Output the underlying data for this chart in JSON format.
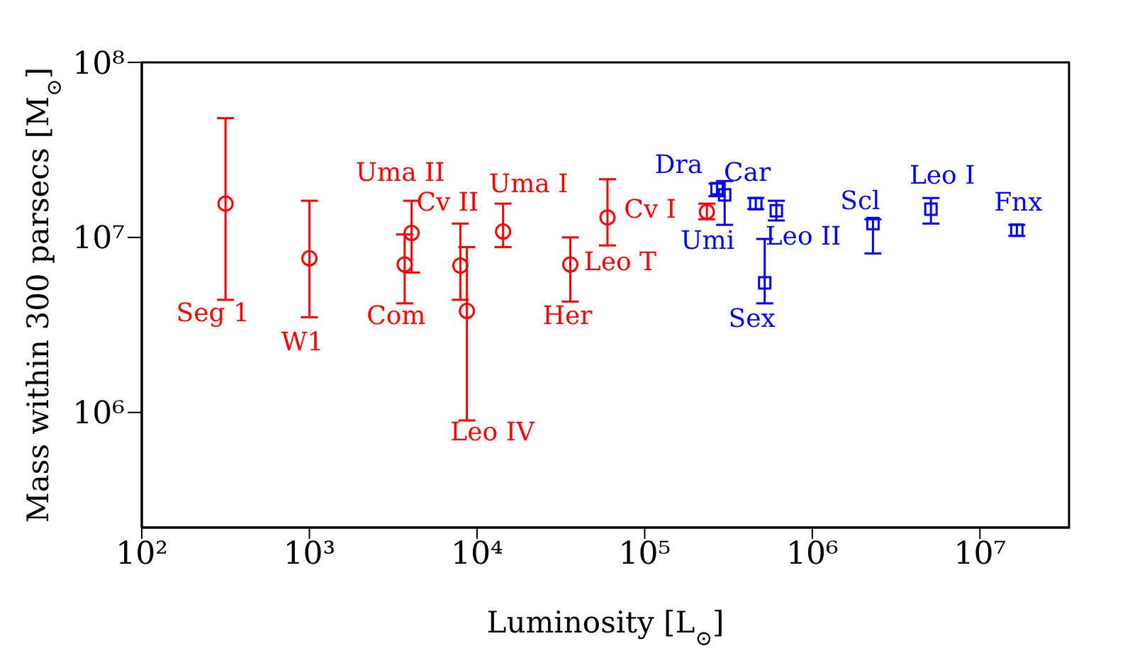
{
  "chart_data": {
    "type": "scatter",
    "xlabel": "Luminosity [L$_{⊙}$]",
    "ylabel": "Mass within 300 parsecs [M$_{⊙}$]",
    "log": "xy",
    "grid": false,
    "legend": false,
    "xlim": [
      100,
      34000000
    ],
    "ylim": [
      220000,
      100000000
    ],
    "xticks": [
      {
        "value": 100,
        "label": "10²"
      },
      {
        "value": 1000,
        "label": "10³"
      },
      {
        "value": 10000,
        "label": "10⁴"
      },
      {
        "value": 100000,
        "label": "10⁵"
      },
      {
        "value": 1000000,
        "label": "10⁶"
      },
      {
        "value": 10000000,
        "label": "10⁷"
      }
    ],
    "yticks": [
      {
        "value": 1000000,
        "label": "10⁶"
      },
      {
        "value": 10000000,
        "label": "10⁷"
      },
      {
        "value": 100000000,
        "label": "10⁸"
      }
    ],
    "series": [
      {
        "color": "#ff0000",
        "marker": "circle",
        "x": [
          316,
          1000,
          3700,
          4070,
          7950,
          8700,
          14300,
          36000,
          60000,
          235000
        ],
        "values": [
          15600000,
          7600000,
          7000000,
          10600000,
          6900000,
          3800000,
          10800000,
          7000000,
          13000000,
          14000000
        ],
        "errors": [
          [
            4400000,
            48000000
          ],
          [
            3500000,
            16200000
          ],
          [
            4200000,
            10400000
          ],
          [
            6300000,
            16200000
          ],
          [
            4400000,
            12000000
          ],
          [
            900000,
            8800000
          ],
          [
            8800000,
            15600000
          ],
          [
            4300000,
            10000000
          ],
          [
            9000000,
            21500000
          ],
          [
            12700000,
            15600000
          ]
        ]
      },
      {
        "color": "#0000ff",
        "marker": "square",
        "x": [
          270000,
          300000,
          460000,
          610000,
          520000,
          2300000,
          5100000,
          16600000
        ],
        "values": [
          19000000,
          17500000,
          15600000,
          14200000,
          5500000,
          12000000,
          14500000,
          11000000
        ],
        "errors": [
          [
            17200000,
            20300000
          ],
          [
            11800000,
            21000000
          ],
          [
            14500000,
            16800000
          ],
          [
            12500000,
            16200000
          ],
          [
            4200000,
            9800000
          ],
          [
            8100000,
            12700000
          ],
          [
            12000000,
            16800000
          ],
          [
            10200000,
            11800000
          ]
        ]
      }
    ],
    "annotations": [
      {
        "text": "Seg 1",
        "x": 316,
        "y": 4400000
      },
      {
        "text": "W1",
        "x": 1000,
        "y": 7600000
      },
      {
        "text": "Com",
        "x": 3700,
        "y": 7000000
      },
      {
        "text": "Uma II",
        "x": 4070,
        "y": 10600000
      },
      {
        "text": "Cv II",
        "x": 7950,
        "y": 6900000
      },
      {
        "text": "Leo IV",
        "x": 8700,
        "y": 900000
      },
      {
        "text": "Uma I",
        "x": 14300,
        "y": 10800000
      },
      {
        "text": "Her",
        "x": 36000,
        "y": 7000000
      },
      {
        "text": "Leo T",
        "x": 60000,
        "y": 13000000
      },
      {
        "text": "Cv I",
        "x": 235000,
        "y": 14000000
      },
      {
        "text": "Dra",
        "x": 270000,
        "y": 19000000
      },
      {
        "text": "Umi",
        "x": 300000,
        "y": 17500000
      },
      {
        "text": "Car",
        "x": 460000,
        "y": 15600000
      },
      {
        "text": "Leo II",
        "x": 610000,
        "y": 14200000
      },
      {
        "text": "Sex",
        "x": 520000,
        "y": 5500000
      },
      {
        "text": "Scl",
        "x": 2300000,
        "y": 12000000
      },
      {
        "text": "Leo I",
        "x": 5100000,
        "y": 14500000
      },
      {
        "text": "Fnx",
        "x": 16600000,
        "y": 11000000
      }
    ]
  }
}
